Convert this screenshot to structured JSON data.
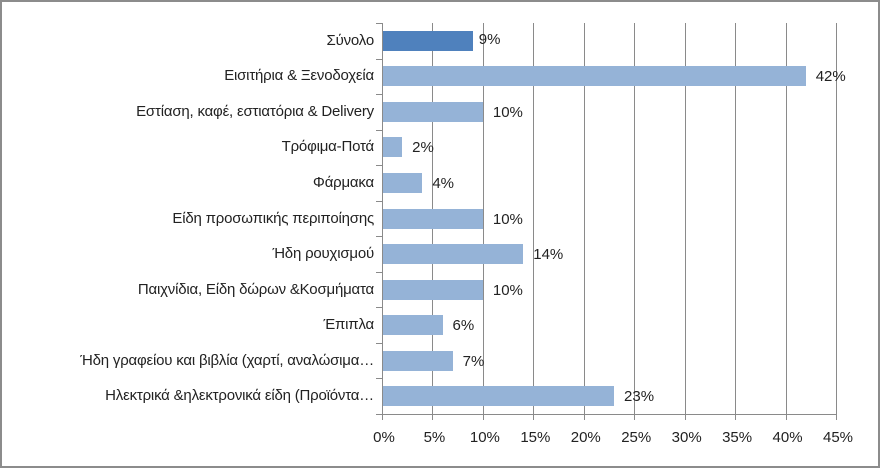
{
  "chart_data": {
    "type": "bar",
    "orientation": "horizontal",
    "title": "",
    "xlabel": "",
    "ylabel": "",
    "xlim": [
      0,
      45
    ],
    "x_ticks": [
      "0%",
      "5%",
      "10%",
      "15%",
      "20%",
      "25%",
      "30%",
      "35%",
      "40%",
      "45%"
    ],
    "grid": true,
    "legend": null,
    "categories": [
      "Σύνολο",
      "Εισιτήρια  & Ξενοδοχεία",
      "Εστίαση,  καφέ, εστιατόρια  & Delivery",
      "Τρόφιμα-Ποτά",
      "Φάρμακα",
      "Είδη  προσωπικής  περιποίησης",
      "Ήδη ρουχισμού",
      "Παιχνίδια,  Είδη δώρων &Κοσμήματα",
      "Έπιπλα",
      "Ήδη γραφείου και  βιβλία  (χαρτί, αναλώσιμα…",
      "Ηλεκτρικά  &ηλεκτρονικά  είδη (Προϊόντα…"
    ],
    "values": [
      9,
      42,
      10,
      2,
      4,
      10,
      14,
      10,
      6,
      7,
      23
    ],
    "value_labels": [
      "9%",
      "42%",
      "10%",
      "2%",
      "4%",
      "10%",
      "14%",
      "10%",
      "6%",
      "7%",
      "23%"
    ],
    "colors": {
      "highlight": "#4f81bd",
      "default": "#95b3d7",
      "grid": "#8a8a8a",
      "text": "#222222"
    }
  }
}
